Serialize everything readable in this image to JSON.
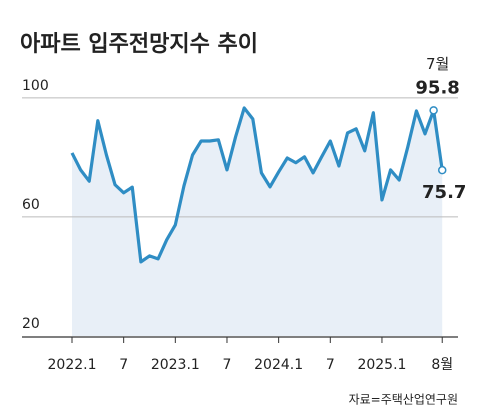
{
  "chart_data": {
    "type": "line",
    "title": "아파트 입주전망지수 추이",
    "categories": [
      "2022.1",
      null,
      null,
      null,
      null,
      null,
      "7",
      null,
      null,
      null,
      null,
      null,
      "2023.1",
      null,
      null,
      null,
      null,
      null,
      "7",
      null,
      null,
      null,
      null,
      null,
      "2024.1",
      null,
      null,
      null,
      null,
      null,
      "7",
      null,
      null,
      null,
      null,
      null,
      "2025.1",
      null,
      null,
      null,
      null,
      null,
      null,
      "8월"
    ],
    "series": [
      {
        "color": "#2f8dc4",
        "values": [
          81.5,
          75.8,
          72,
          92.3,
          80.8,
          70.8,
          68.1,
          70,
          44.9,
          46.9,
          45.9,
          52.3,
          57.3,
          70.4,
          80.8,
          85.5,
          85.5,
          85.9,
          75.8,
          86.9,
          96.6,
          92.9,
          74.8,
          70.1,
          75.1,
          79.8,
          78.2,
          80.2,
          74.8,
          80.2,
          85.5,
          77.1,
          88.2,
          89.6,
          82.2,
          95,
          65.7,
          75.8,
          72.4,
          83.5,
          95.6,
          87.9,
          95.8,
          75.7
        ]
      }
    ],
    "area_color": "#e8eff7",
    "ylim": [
      20,
      107
    ],
    "yticks": [
      20,
      60,
      100
    ],
    "grid": true,
    "annotations": [
      "7월"
    ],
    "source": "자료=주택산업연구원"
  }
}
